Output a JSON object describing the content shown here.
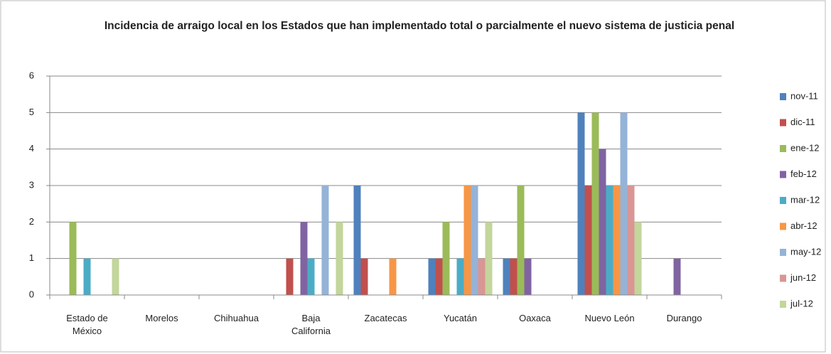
{
  "chart_data": {
    "type": "bar",
    "title": "Incidencia de arraigo local en los Estados que han implementado total o parcialmente el nuevo sistema de justicia penal",
    "categories": [
      "Estado de México",
      "Morelos",
      "Chihuahua",
      "Baja California",
      "Zacatecas",
      "Yucatán",
      "Oaxaca",
      "Nuevo León",
      "Durango"
    ],
    "series": [
      {
        "name": "nov-11",
        "color": "#4f81bd",
        "values": [
          null,
          null,
          null,
          null,
          3,
          1,
          1,
          5,
          null
        ]
      },
      {
        "name": "dic-11",
        "color": "#c0504d",
        "values": [
          null,
          null,
          null,
          1,
          1,
          1,
          1,
          3,
          null
        ]
      },
      {
        "name": "ene-12",
        "color": "#9bbb59",
        "values": [
          2,
          null,
          null,
          null,
          null,
          2,
          3,
          5,
          null
        ]
      },
      {
        "name": "feb-12",
        "color": "#8064a2",
        "values": [
          null,
          null,
          null,
          2,
          null,
          null,
          1,
          4,
          1
        ]
      },
      {
        "name": "mar-12",
        "color": "#4bacc6",
        "values": [
          1,
          null,
          null,
          1,
          null,
          1,
          null,
          3,
          null
        ]
      },
      {
        "name": "abr-12",
        "color": "#f79646",
        "values": [
          null,
          null,
          null,
          null,
          1,
          3,
          null,
          3,
          null
        ]
      },
      {
        "name": "may-12",
        "color": "#95b3d7",
        "values": [
          null,
          null,
          null,
          3,
          null,
          3,
          null,
          5,
          null
        ]
      },
      {
        "name": "jun-12",
        "color": "#d99694",
        "values": [
          null,
          null,
          null,
          null,
          null,
          1,
          null,
          3,
          null
        ]
      },
      {
        "name": "jul-12",
        "color": "#c3d69b",
        "values": [
          1,
          null,
          null,
          2,
          null,
          2,
          null,
          2,
          null
        ]
      }
    ],
    "ylim": [
      0,
      6
    ],
    "yticks": [
      0,
      1,
      2,
      3,
      4,
      5,
      6
    ],
    "grid": true,
    "legend": "right"
  }
}
